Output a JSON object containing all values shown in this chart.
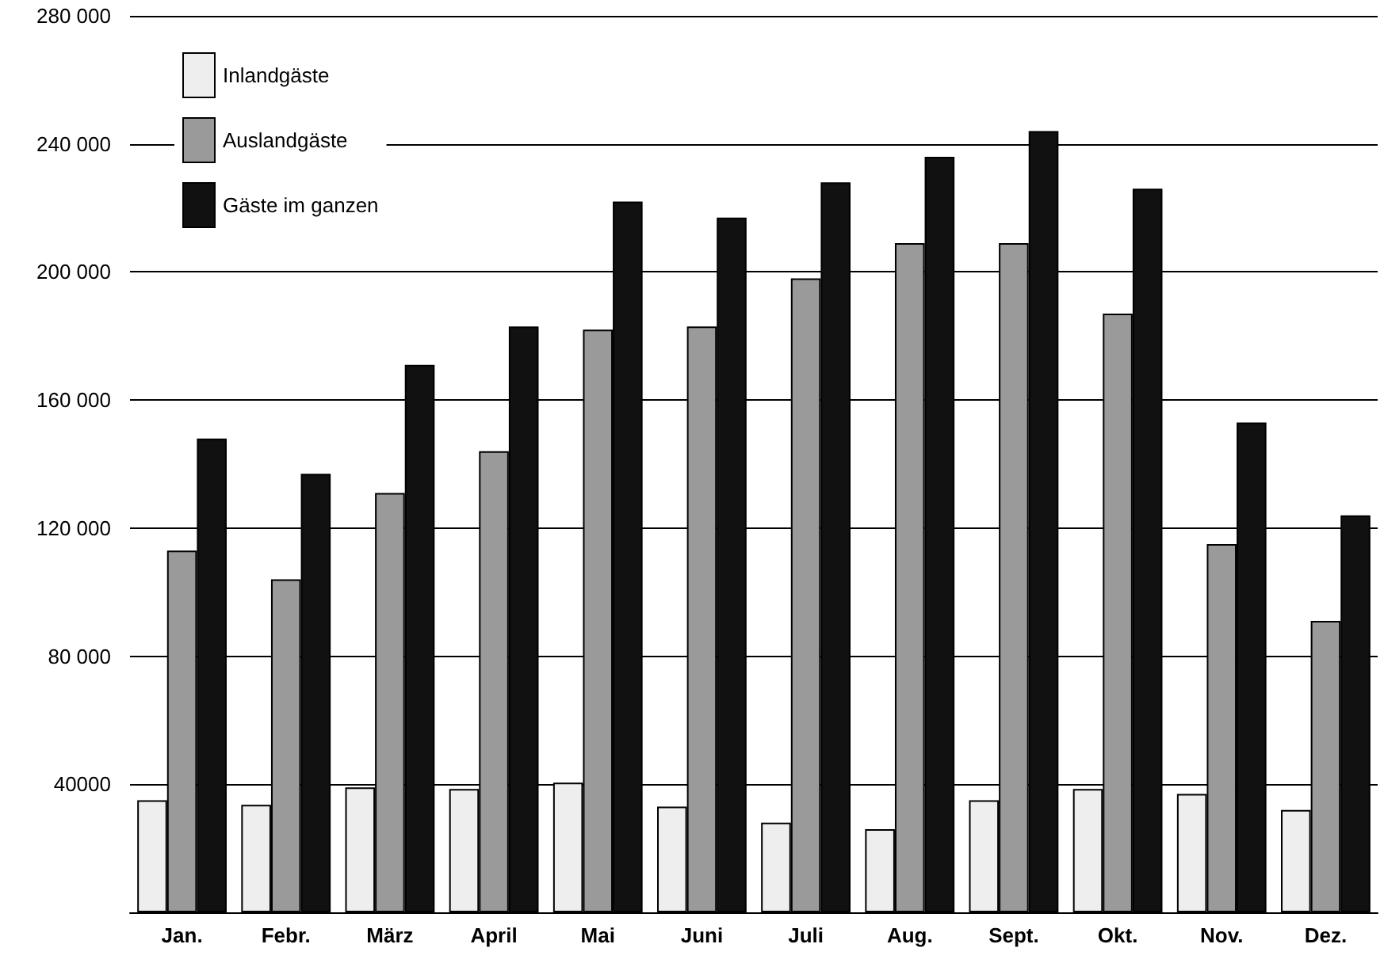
{
  "chart_data": {
    "type": "bar",
    "categories": [
      "Jan.",
      "Febr.",
      "März",
      "April",
      "Mai",
      "Juni",
      "Juli",
      "Aug.",
      "Sept.",
      "Okt.",
      "Nov.",
      "Dez."
    ],
    "series": [
      {
        "name": "Inlandgäste",
        "color": "#eeeeee",
        "values": [
          35000,
          33600,
          39000,
          38500,
          40500,
          33000,
          28000,
          26000,
          35000,
          38500,
          37000,
          32000
        ]
      },
      {
        "name": "Auslandgäste",
        "color": "#9a9a9a",
        "values": [
          113000,
          104000,
          131000,
          144000,
          182000,
          183000,
          198000,
          209000,
          209000,
          187000,
          115000,
          91000
        ]
      },
      {
        "name": "Gäste im ganzen",
        "color": "#111111",
        "values": [
          148000,
          137000,
          171000,
          183000,
          222000,
          217000,
          228000,
          236000,
          244000,
          226000,
          153000,
          124000
        ]
      }
    ],
    "ylim": [
      0,
      280000
    ],
    "yticks": [
      {
        "value": 40000,
        "label": "40000"
      },
      {
        "value": 80000,
        "label": "80 000"
      },
      {
        "value": 120000,
        "label": "120 000"
      },
      {
        "value": 160000,
        "label": "160 000"
      },
      {
        "value": 200000,
        "label": "200 000"
      },
      {
        "value": 240000,
        "label": "240 000"
      },
      {
        "value": 280000,
        "label": "280 000"
      }
    ],
    "grid": "y",
    "legend": "top left"
  }
}
